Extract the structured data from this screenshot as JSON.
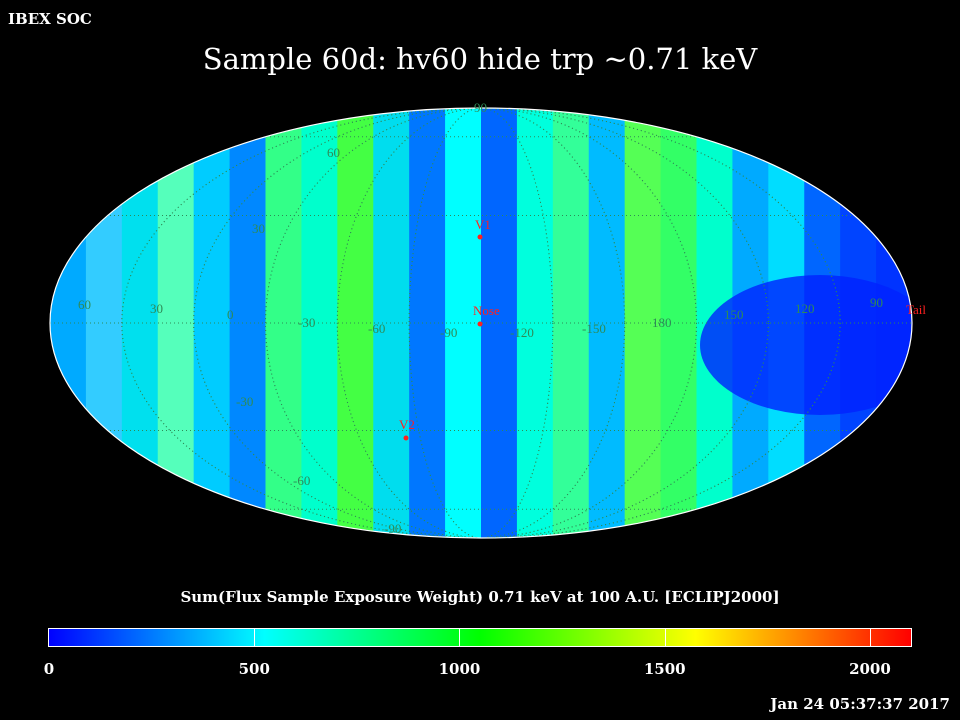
{
  "header": {
    "corner_label": "IBEX SOC",
    "title": "Sample 60d: hv60 hide trp ~0.71 keV"
  },
  "map": {
    "projection": "Mollweide",
    "longitude_labels": [
      "60",
      "30",
      "0",
      "-30",
      "-60",
      "-90",
      "-120",
      "-150",
      "180",
      "150",
      "120",
      "90"
    ],
    "latitude_labels": [
      "90",
      "60",
      "30",
      "-30",
      "-60",
      "-90"
    ],
    "markers": [
      {
        "label": "V1",
        "color": "#ff2020"
      },
      {
        "label": "Nose",
        "color": "#ff2020"
      },
      {
        "label": "V2",
        "color": "#ff2020"
      },
      {
        "label": "Tail",
        "color": "#ff2020"
      }
    ],
    "graticule_color": "#2e8b57"
  },
  "colorbar": {
    "title": "Sum(Flux Sample Exposure Weight)  0.71 keV at 100 A.U. [ECLIPJ2000]",
    "min": 0,
    "max": 2100,
    "ticks": [
      "0",
      "500",
      "1000",
      "1500",
      "2000"
    ],
    "stops": [
      "#0000ff",
      "#00ffff",
      "#00ff00",
      "#ffff00",
      "#ff0000"
    ]
  },
  "footer": {
    "timestamp": "Jan 24 05:37:37 2017"
  }
}
